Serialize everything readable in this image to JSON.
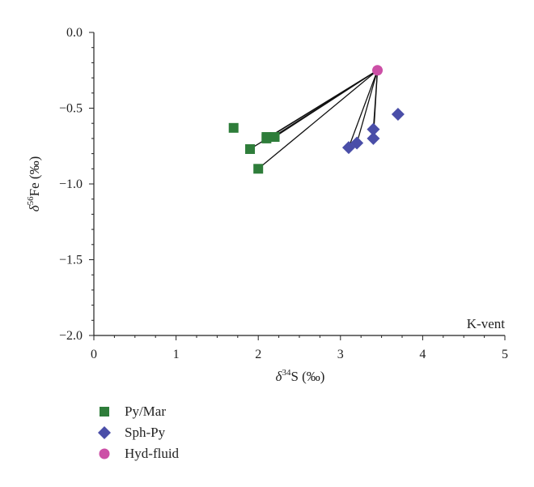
{
  "chart_data": {
    "type": "scatter",
    "xlabel_symbol": "δ",
    "xlabel_sup": "34",
    "xlabel_rest": "S (‰)",
    "ylabel_symbol": "δ",
    "ylabel_sup": "56",
    "ylabel_rest": "Fe (‰)",
    "annotation": "K-vent",
    "xlim": [
      0,
      5
    ],
    "ylim": [
      -2.0,
      0.0
    ],
    "x_ticks": [
      0,
      1,
      2,
      3,
      4,
      5
    ],
    "x_tick_labels": [
      "0",
      "1",
      "2",
      "3",
      "4",
      "5"
    ],
    "y_ticks": [
      0.0,
      -0.5,
      -1.0,
      -1.5,
      -2.0
    ],
    "y_tick_labels": [
      "0.0",
      "−0.5",
      "−1.0",
      "−1.5",
      "−2.0"
    ],
    "grid": false,
    "legend_position": "bottom-left, below plot",
    "series": [
      {
        "name": "Py/Mar",
        "marker": "square",
        "color": "#2e7d3a",
        "points": [
          [
            1.7,
            -0.63
          ],
          [
            1.9,
            -0.77
          ],
          [
            2.0,
            -0.9
          ],
          [
            2.1,
            -0.69
          ],
          [
            2.1,
            -0.7
          ],
          [
            2.2,
            -0.69
          ]
        ]
      },
      {
        "name": "Sph-Py",
        "marker": "diamond",
        "color": "#4a4ea8",
        "points": [
          [
            3.1,
            -0.76
          ],
          [
            3.2,
            -0.73
          ],
          [
            3.4,
            -0.64
          ],
          [
            3.4,
            -0.7
          ],
          [
            3.7,
            -0.54
          ]
        ]
      },
      {
        "name": "Hyd-fluid",
        "marker": "circle",
        "color": "#cc4fa6",
        "points": [
          [
            3.45,
            -0.25
          ]
        ]
      }
    ],
    "tie_lines": [
      {
        "from": [
          3.45,
          -0.25
        ],
        "to": [
          1.9,
          -0.77
        ]
      },
      {
        "from": [
          3.45,
          -0.25
        ],
        "to": [
          2.0,
          -0.9
        ]
      },
      {
        "from": [
          3.45,
          -0.25
        ],
        "to": [
          2.1,
          -0.7
        ]
      },
      {
        "from": [
          3.45,
          -0.25
        ],
        "to": [
          2.15,
          -0.7
        ]
      },
      {
        "from": [
          3.45,
          -0.25
        ],
        "to": [
          2.2,
          -0.69
        ]
      },
      {
        "from": [
          3.45,
          -0.25
        ],
        "to": [
          3.1,
          -0.76
        ]
      },
      {
        "from": [
          3.45,
          -0.25
        ],
        "to": [
          3.2,
          -0.73
        ]
      },
      {
        "from": [
          3.45,
          -0.25
        ],
        "to": [
          3.4,
          -0.64
        ]
      },
      {
        "from": [
          3.45,
          -0.25
        ],
        "to": [
          3.4,
          -0.7
        ]
      }
    ]
  }
}
